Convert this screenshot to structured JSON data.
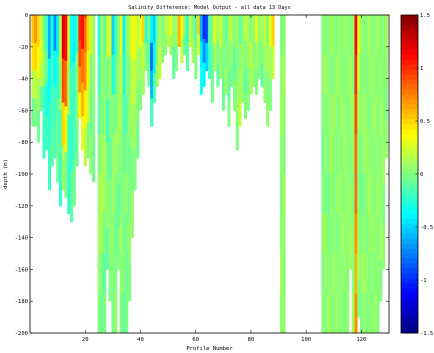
{
  "chart_data": {
    "type": "heatmap",
    "title": "Salinity Difference: Model Output - all data 13 Days",
    "xlabel": "Profile Number",
    "ylabel": "depth (m)",
    "xlim": [
      0,
      130
    ],
    "ylim": [
      -200,
      0
    ],
    "x_ticks": [
      20,
      40,
      60,
      80,
      100,
      120
    ],
    "y_ticks": [
      0,
      -20,
      -40,
      -60,
      -80,
      -100,
      -120,
      -140,
      -160,
      -180,
      -200
    ],
    "colorbar": {
      "range": [
        -1.5,
        1.5
      ],
      "ticks": [
        1.5,
        1,
        0.5,
        0,
        -0.5,
        -1,
        -1.5
      ],
      "colormap": "jet"
    },
    "profiles": [
      {
        "x": 1,
        "max_depth": -70,
        "values": [
          0.55,
          0.45,
          0.15,
          -0.05
        ]
      },
      {
        "x": 2,
        "max_depth": -70,
        "values": [
          0.7,
          0.5,
          0.2,
          0.0
        ]
      },
      {
        "x": 3,
        "max_depth": -80,
        "values": [
          0.5,
          0.35,
          0.1,
          -0.05
        ]
      },
      {
        "x": 4,
        "max_depth": -60,
        "values": [
          0.2,
          0.3,
          0.15,
          -0.1
        ]
      },
      {
        "x": 5,
        "max_depth": -90,
        "values": [
          0.0,
          0.1,
          -0.15,
          -0.2
        ]
      },
      {
        "x": 6,
        "max_depth": -85,
        "values": [
          -0.2,
          -0.1,
          -0.3,
          -0.2
        ]
      },
      {
        "x": 7,
        "max_depth": -110,
        "values": [
          -0.6,
          -0.35,
          -0.25,
          -0.2
        ]
      },
      {
        "x": 8,
        "max_depth": -95,
        "values": [
          -0.3,
          -0.2,
          -0.15,
          -0.1
        ]
      },
      {
        "x": 9,
        "max_depth": -90,
        "values": [
          -0.7,
          -0.35,
          -0.2,
          -0.15
        ]
      },
      {
        "x": 10,
        "max_depth": -105,
        "values": [
          -0.4,
          -0.25,
          -0.1,
          -0.05
        ]
      },
      {
        "x": 11,
        "max_depth": -120,
        "values": [
          0.2,
          0.05,
          -0.15,
          -0.25
        ]
      },
      {
        "x": 12,
        "max_depth": -110,
        "values": [
          1.2,
          0.9,
          0.5,
          0.1
        ]
      },
      {
        "x": 13,
        "max_depth": -115,
        "values": [
          1.1,
          0.8,
          0.4,
          0.0
        ]
      },
      {
        "x": 14,
        "max_depth": -125,
        "values": [
          0.2,
          0.1,
          -0.2,
          -0.25
        ]
      },
      {
        "x": 15,
        "max_depth": -130,
        "values": [
          -0.3,
          -0.2,
          -0.25,
          -0.1
        ]
      },
      {
        "x": 16,
        "max_depth": -120,
        "values": [
          -0.4,
          -0.2,
          -0.15,
          -0.05
        ]
      },
      {
        "x": 17,
        "max_depth": -95,
        "values": [
          -0.2,
          0.05,
          0.0,
          -0.05
        ]
      },
      {
        "x": 18,
        "max_depth": -65,
        "values": [
          1.0,
          0.9,
          0.7,
          0.4
        ]
      },
      {
        "x": 19,
        "max_depth": -85,
        "values": [
          1.1,
          0.8,
          0.6,
          0.3
        ]
      },
      {
        "x": 20,
        "max_depth": -95,
        "values": [
          0.8,
          0.7,
          0.4,
          0.2
        ]
      },
      {
        "x": 21,
        "max_depth": -90,
        "values": [
          0.5,
          0.4,
          0.3,
          0.0
        ]
      },
      {
        "x": 22,
        "max_depth": -100,
        "values": [
          0.2,
          0.0,
          -0.05,
          0.05
        ]
      },
      {
        "x": 23,
        "max_depth": -105,
        "values": [
          0.1,
          0.05,
          0.0,
          -0.05
        ]
      },
      {
        "x": 25,
        "max_depth": -200,
        "values": [
          -0.3,
          -0.2,
          -0.1,
          0.0,
          0.05,
          0.1,
          0.05,
          0.0
        ]
      },
      {
        "x": 26,
        "max_depth": -200,
        "values": [
          0.1,
          0.05,
          0.0,
          0.1,
          0.2,
          0.1,
          0.0,
          -0.05
        ]
      },
      {
        "x": 27,
        "max_depth": -200,
        "values": [
          -0.1,
          0.0,
          0.05,
          0.1,
          0.05,
          0.0,
          -0.1,
          0.0
        ]
      },
      {
        "x": 28,
        "max_depth": -160,
        "values": [
          0.2,
          0.0,
          -0.2,
          0.0,
          0.05,
          -0.1
        ]
      },
      {
        "x": 29,
        "max_depth": -180,
        "values": [
          0.3,
          0.1,
          0.0,
          -0.1,
          0.0,
          0.05,
          0.0
        ]
      },
      {
        "x": 30,
        "max_depth": -200,
        "values": [
          -0.5,
          -0.3,
          0.0,
          0.05,
          0.1,
          0.05,
          0.0,
          0.0
        ]
      },
      {
        "x": 31,
        "max_depth": -200,
        "values": [
          -0.2,
          -0.1,
          0.0,
          0.1,
          0.0,
          -0.05,
          0.0,
          0.05
        ]
      },
      {
        "x": 32,
        "max_depth": -160,
        "values": [
          0.0,
          0.05,
          0.1,
          0.0,
          -0.1,
          0.0
        ]
      },
      {
        "x": 33,
        "max_depth": -200,
        "values": [
          0.3,
          0.2,
          0.1,
          0.05,
          0.0,
          0.1,
          0.05,
          0.0
        ]
      },
      {
        "x": 34,
        "max_depth": -200,
        "values": [
          -0.4,
          -0.3,
          -0.15,
          -0.1,
          0.0,
          -0.05,
          0.0,
          -0.1
        ]
      },
      {
        "x": 35,
        "max_depth": -200,
        "values": [
          0.05,
          0.0,
          -0.1,
          0.0,
          0.05,
          0.0,
          -0.05,
          0.0
        ]
      },
      {
        "x": 36,
        "max_depth": -180,
        "values": [
          0.1,
          0.0,
          0.05,
          -0.05,
          0.0,
          0.05,
          0.0
        ]
      },
      {
        "x": 37,
        "max_depth": -140,
        "values": [
          0.4,
          0.2,
          0.1,
          0.0,
          0.05
        ]
      },
      {
        "x": 38,
        "max_depth": -110,
        "values": [
          0.3,
          0.2,
          0.1,
          0.0
        ]
      },
      {
        "x": 39,
        "max_depth": -90,
        "values": [
          0.2,
          0.1,
          0.0,
          -0.05
        ]
      },
      {
        "x": 40,
        "max_depth": -60,
        "values": [
          0.3,
          0.1,
          0.0
        ]
      },
      {
        "x": 41,
        "max_depth": -50,
        "values": [
          0.5,
          0.2,
          0.1
        ]
      },
      {
        "x": 42,
        "max_depth": -35,
        "values": [
          -0.3,
          0.0
        ]
      },
      {
        "x": 43,
        "max_depth": -45,
        "values": [
          0.0,
          -0.1,
          -0.05
        ]
      },
      {
        "x": 44,
        "max_depth": -70,
        "values": [
          -0.4,
          -0.8,
          -0.6,
          -0.2
        ]
      },
      {
        "x": 45,
        "max_depth": -55,
        "values": [
          -0.5,
          -0.4,
          -0.15
        ]
      },
      {
        "x": 46,
        "max_depth": -45,
        "values": [
          -0.1,
          0.0,
          0.1
        ]
      },
      {
        "x": 47,
        "max_depth": -40,
        "values": [
          0.1,
          0.2
        ]
      },
      {
        "x": 48,
        "max_depth": -30,
        "values": [
          0.0,
          0.05
        ]
      },
      {
        "x": 49,
        "max_depth": -25,
        "values": [
          0.1,
          0.0
        ]
      },
      {
        "x": 50,
        "max_depth": -20,
        "values": [
          0.2
        ]
      },
      {
        "x": 51,
        "max_depth": -25,
        "values": [
          0.3,
          0.1
        ]
      },
      {
        "x": 52,
        "max_depth": -40,
        "values": [
          0.05,
          -0.1
        ]
      },
      {
        "x": 53,
        "max_depth": -35,
        "values": [
          0.1,
          0.0
        ]
      },
      {
        "x": 54,
        "max_depth": -20,
        "values": [
          0.6
        ]
      },
      {
        "x": 55,
        "max_depth": -30,
        "values": [
          0.4,
          0.2
        ]
      },
      {
        "x": 56,
        "max_depth": -25,
        "values": [
          0.0,
          -0.1
        ]
      },
      {
        "x": 57,
        "max_depth": -35,
        "values": [
          -0.2,
          -0.1
        ]
      },
      {
        "x": 58,
        "max_depth": -20,
        "values": [
          0.2
        ]
      },
      {
        "x": 59,
        "max_depth": -30,
        "values": [
          0.0,
          0.1
        ]
      },
      {
        "x": 60,
        "max_depth": -40,
        "values": [
          -0.1,
          0.0
        ]
      },
      {
        "x": 61,
        "max_depth": -25,
        "values": [
          0.5,
          0.3
        ]
      },
      {
        "x": 62,
        "max_depth": -50,
        "values": [
          -0.6,
          -0.4,
          -0.3
        ]
      },
      {
        "x": 63,
        "max_depth": -45,
        "values": [
          -1.0,
          -0.7,
          -0.4
        ]
      },
      {
        "x": 64,
        "max_depth": -35,
        "values": [
          -0.9,
          -0.5
        ]
      },
      {
        "x": 65,
        "max_depth": -40,
        "values": [
          -0.1,
          -0.2
        ]
      },
      {
        "x": 66,
        "max_depth": -55,
        "values": [
          0.0,
          -0.1,
          -0.05
        ]
      },
      {
        "x": 67,
        "max_depth": -35,
        "values": [
          0.3,
          0.15
        ]
      },
      {
        "x": 68,
        "max_depth": -45,
        "values": [
          0.1,
          0.0,
          -0.1
        ]
      },
      {
        "x": 69,
        "max_depth": -40,
        "values": [
          0.2,
          0.05
        ]
      },
      {
        "x": 70,
        "max_depth": -60,
        "values": [
          0.05,
          0.0,
          -0.05
        ]
      },
      {
        "x": 71,
        "max_depth": -50,
        "values": [
          -0.1,
          0.0,
          0.1
        ]
      },
      {
        "x": 72,
        "max_depth": -70,
        "values": [
          0.1,
          0.0,
          -0.1,
          0.0
        ]
      },
      {
        "x": 73,
        "max_depth": -45,
        "values": [
          0.2,
          0.1,
          0.0
        ]
      },
      {
        "x": 74,
        "max_depth": -60,
        "values": [
          0.0,
          -0.1,
          0.0
        ]
      },
      {
        "x": 75,
        "max_depth": -85,
        "values": [
          0.1,
          0.0,
          0.05,
          0.0
        ]
      },
      {
        "x": 76,
        "max_depth": -70,
        "values": [
          -0.1,
          0.0,
          0.1,
          0.2
        ]
      },
      {
        "x": 77,
        "max_depth": -55,
        "values": [
          0.0,
          0.1,
          0.05
        ]
      },
      {
        "x": 78,
        "max_depth": -65,
        "values": [
          0.2,
          0.0,
          -0.1,
          0.0
        ]
      },
      {
        "x": 79,
        "max_depth": -60,
        "values": [
          0.1,
          0.05,
          0.0
        ]
      },
      {
        "x": 80,
        "max_depth": -50,
        "values": [
          0.0,
          0.2,
          0.1
        ]
      },
      {
        "x": 81,
        "max_depth": -45,
        "values": [
          0.1,
          0.0,
          0.05
        ]
      },
      {
        "x": 82,
        "max_depth": -50,
        "values": [
          0.3,
          0.1,
          0.0
        ]
      },
      {
        "x": 83,
        "max_depth": -40,
        "values": [
          0.05,
          0.0
        ]
      },
      {
        "x": 84,
        "max_depth": -45,
        "values": [
          0.1,
          0.0,
          -0.1
        ]
      },
      {
        "x": 85,
        "max_depth": -55,
        "values": [
          0.2,
          0.1,
          0.05
        ]
      },
      {
        "x": 86,
        "max_depth": -70,
        "values": [
          0.0,
          0.1,
          0.0,
          0.05
        ]
      },
      {
        "x": 87,
        "max_depth": -60,
        "values": [
          0.3,
          0.1,
          0.0
        ]
      },
      {
        "x": 88,
        "max_depth": -40,
        "values": [
          0.5,
          0.2
        ]
      },
      {
        "x": 91,
        "max_depth": -200,
        "values": [
          0.0,
          0.05,
          0.1,
          0.05,
          0.0,
          0.05,
          0.1,
          0.05
        ]
      },
      {
        "x": 92,
        "max_depth": -200,
        "values": [
          0.05,
          0.1,
          0.05,
          0.0,
          0.1,
          0.05,
          0.0,
          0.05
        ]
      },
      {
        "x": 106,
        "max_depth": -200,
        "values": [
          0.0,
          0.05,
          0.0,
          -0.05,
          0.0,
          0.05,
          0.0,
          0.05
        ]
      },
      {
        "x": 107,
        "max_depth": -200,
        "values": [
          0.05,
          0.1,
          0.0,
          0.05,
          0.0,
          0.1,
          0.05,
          0.0
        ]
      },
      {
        "x": 108,
        "max_depth": -200,
        "values": [
          0.0,
          0.05,
          0.05,
          0.0,
          -0.05,
          0.0,
          0.05,
          0.1
        ]
      },
      {
        "x": 109,
        "max_depth": -200,
        "values": [
          0.1,
          0.0,
          0.05,
          0.1,
          0.05,
          0.0,
          0.0,
          0.05
        ]
      },
      {
        "x": 110,
        "max_depth": -200,
        "values": [
          0.05,
          0.0,
          0.1,
          0.05,
          0.0,
          0.05,
          0.1,
          0.0
        ]
      },
      {
        "x": 111,
        "max_depth": -200,
        "values": [
          0.0,
          0.1,
          0.05,
          0.0,
          0.05,
          0.0,
          0.05,
          0.1
        ]
      },
      {
        "x": 112,
        "max_depth": -200,
        "values": [
          0.1,
          0.05,
          0.0,
          0.05,
          0.1,
          0.0,
          0.05,
          0.0
        ]
      },
      {
        "x": 113,
        "max_depth": -200,
        "values": [
          0.0,
          0.05,
          0.1,
          0.0,
          0.05,
          0.1,
          0.0,
          0.05
        ]
      },
      {
        "x": 114,
        "max_depth": -200,
        "values": [
          0.05,
          0.0,
          0.05,
          0.1,
          0.0,
          0.05,
          0.1,
          0.0
        ]
      },
      {
        "x": 115,
        "max_depth": -200,
        "values": [
          0.1,
          0.05,
          0.0,
          0.05,
          0.1,
          0.05,
          0.0,
          0.05
        ]
      },
      {
        "x": 116,
        "max_depth": -160,
        "values": [
          0.0,
          0.1,
          0.05,
          0.0,
          0.05,
          0.1
        ]
      },
      {
        "x": 117,
        "max_depth": -200,
        "values": [
          0.05,
          0.0,
          0.1,
          0.05,
          0.0,
          0.05,
          0.0,
          0.1
        ]
      },
      {
        "x": 118,
        "max_depth": -200,
        "values": [
          1.1,
          1.0,
          0.9,
          0.8,
          0.8,
          0.7,
          0.6,
          0.7
        ]
      },
      {
        "x": 119,
        "max_depth": -190,
        "values": [
          0.3,
          0.2,
          0.1,
          0.05,
          0.0,
          0.05,
          0.1,
          0.0
        ]
      },
      {
        "x": 120,
        "max_depth": -200,
        "values": [
          0.1,
          0.0,
          0.05,
          0.0,
          -0.05,
          0.0,
          0.05,
          0.0
        ]
      },
      {
        "x": 121,
        "max_depth": -200,
        "values": [
          0.0,
          0.05,
          0.1,
          0.05,
          0.0,
          0.05,
          0.1,
          0.05
        ]
      },
      {
        "x": 122,
        "max_depth": -200,
        "values": [
          0.05,
          0.0,
          0.05,
          0.1,
          0.05,
          0.0,
          0.05,
          0.0
        ]
      },
      {
        "x": 123,
        "max_depth": -200,
        "values": [
          0.1,
          0.05,
          0.0,
          0.05,
          0.1,
          0.05,
          0.0,
          0.05
        ]
      },
      {
        "x": 124,
        "max_depth": -200,
        "values": [
          0.0,
          0.1,
          0.05,
          0.0,
          0.05,
          0.1,
          0.05,
          0.0
        ]
      },
      {
        "x": 125,
        "max_depth": -200,
        "values": [
          0.05,
          0.0,
          0.1,
          0.05,
          0.0,
          0.05,
          0.0,
          0.1
        ]
      },
      {
        "x": 126,
        "max_depth": -200,
        "values": [
          0.1,
          0.05,
          0.0,
          0.05,
          0.1,
          0.0,
          0.05,
          0.0
        ]
      },
      {
        "x": 127,
        "max_depth": -180,
        "values": [
          0.0,
          0.05,
          0.1,
          0.0,
          0.05,
          0.1,
          0.0
        ]
      },
      {
        "x": 128,
        "max_depth": -160,
        "values": [
          0.05,
          0.0,
          0.05,
          0.1,
          0.0,
          0.05
        ]
      },
      {
        "x": 129,
        "max_depth": -90,
        "values": [
          0.1,
          0.05,
          0.0,
          0.05
        ]
      }
    ]
  }
}
